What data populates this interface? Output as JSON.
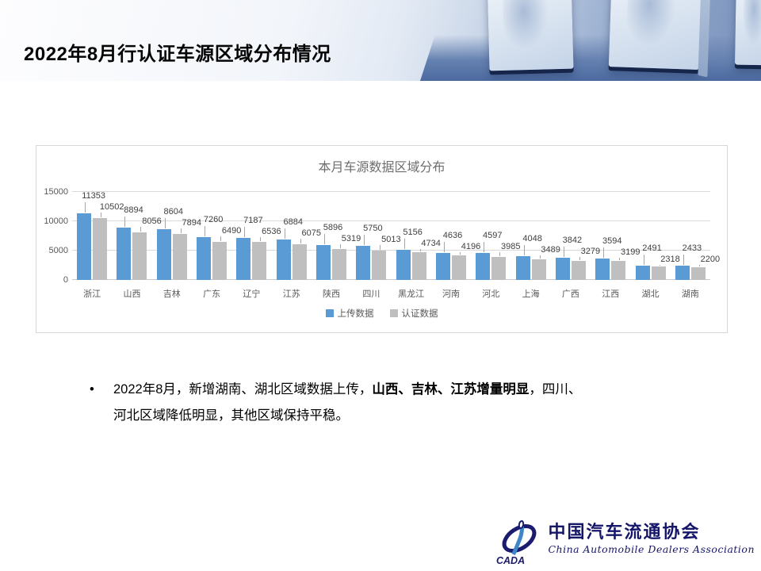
{
  "slide": {
    "title": "2022年8月行认证车源区域分布情况"
  },
  "chart_data": {
    "type": "bar",
    "title": "本月车源数据区域分布",
    "categories": [
      "浙江",
      "山西",
      "吉林",
      "广东",
      "辽宁",
      "江苏",
      "陕西",
      "四川",
      "黑龙江",
      "河南",
      "河北",
      "上海",
      "广西",
      "江西",
      "湖北",
      "湖南"
    ],
    "series": [
      {
        "name": "上传数据",
        "color": "#5B9BD5",
        "values": [
          11353,
          8894,
          8604,
          7260,
          7187,
          6884,
          5896,
          5750,
          5156,
          4636,
          4597,
          4048,
          3842,
          3594,
          2491,
          2433
        ]
      },
      {
        "name": "认证数据",
        "color": "#BFBFBF",
        "values": [
          10502,
          8056,
          7894,
          6490,
          6536,
          6075,
          5319,
          5013,
          4734,
          4196,
          3985,
          3489,
          3279,
          3199,
          2318,
          2200
        ]
      }
    ],
    "xlabel": "",
    "ylabel": "",
    "ylim": [
      0,
      15000
    ],
    "yticks": [
      0,
      5000,
      10000,
      15000
    ],
    "grid": true,
    "data_labels": true,
    "legend_position": "bottom"
  },
  "bullet": {
    "marker": "•",
    "lines": [
      [
        {
          "text": "2022年8月，新增湖南、湖北区域数据上传，",
          "bold": false
        },
        {
          "text": "山西、吉林、江苏增量明显",
          "bold": true
        },
        {
          "text": "，四川、",
          "bold": false
        }
      ],
      [
        {
          "text": "河北区域降低明显，其他区域保持平稳。",
          "bold": false
        }
      ]
    ]
  },
  "logo": {
    "acronym": "CADA",
    "name_cn": "中国汽车流通协会",
    "name_en": "China Automobile Dealers Association",
    "color": "#15156a"
  }
}
